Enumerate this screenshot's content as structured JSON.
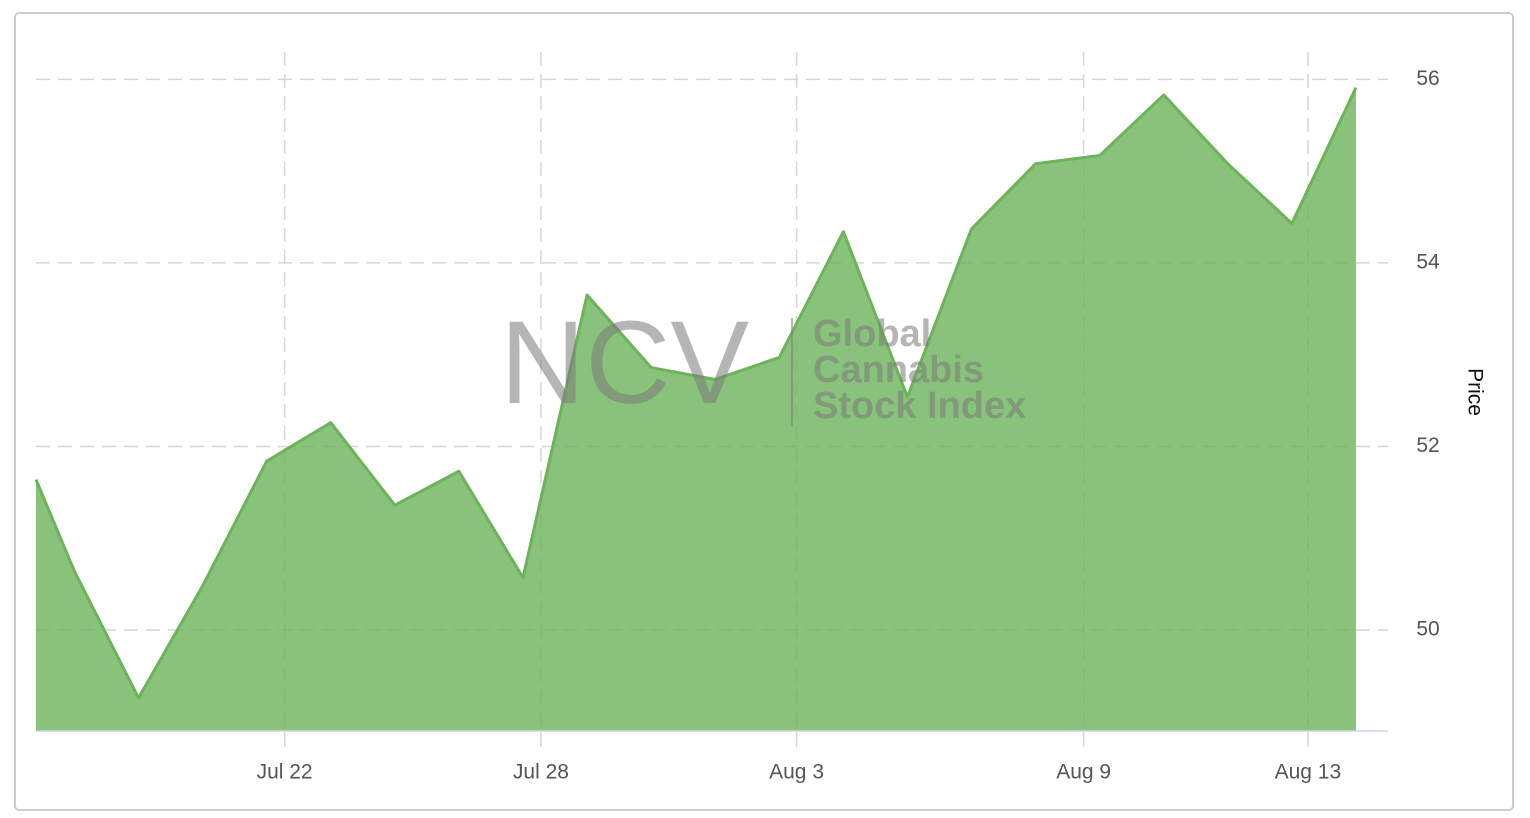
{
  "chart_data": {
    "type": "area",
    "watermark": {
      "logo": "NCV",
      "lines": [
        "Global",
        "Cannabis",
        "Stock Index"
      ]
    },
    "y_axis_label": "Price",
    "x": [
      0.4,
      1,
      2,
      3,
      4,
      5,
      6,
      7,
      8,
      9,
      10,
      11,
      12,
      13,
      14,
      15,
      16,
      17,
      18,
      19,
      20,
      21
    ],
    "values": [
      51.64,
      50.64,
      49.26,
      50.48,
      51.84,
      52.26,
      51.36,
      51.73,
      50.57,
      53.65,
      52.86,
      52.73,
      52.97,
      54.34,
      52.54,
      54.37,
      55.08,
      55.17,
      55.83,
      55.08,
      54.43,
      55.91
    ],
    "color": "#6cb35a",
    "xlim": [
      0.4,
      21.5
    ],
    "xticks": [
      {
        "value": 4.28,
        "label": "Jul 22"
      },
      {
        "value": 8.28,
        "label": "Jul 28"
      },
      {
        "value": 12.27,
        "label": "Aug 3"
      },
      {
        "value": 16.75,
        "label": "Aug 9"
      },
      {
        "value": 20.25,
        "label": "Aug 13"
      }
    ],
    "ylim": [
      48.9,
      56.2
    ],
    "yticks": [
      50,
      52,
      54,
      56
    ],
    "grid": true
  }
}
